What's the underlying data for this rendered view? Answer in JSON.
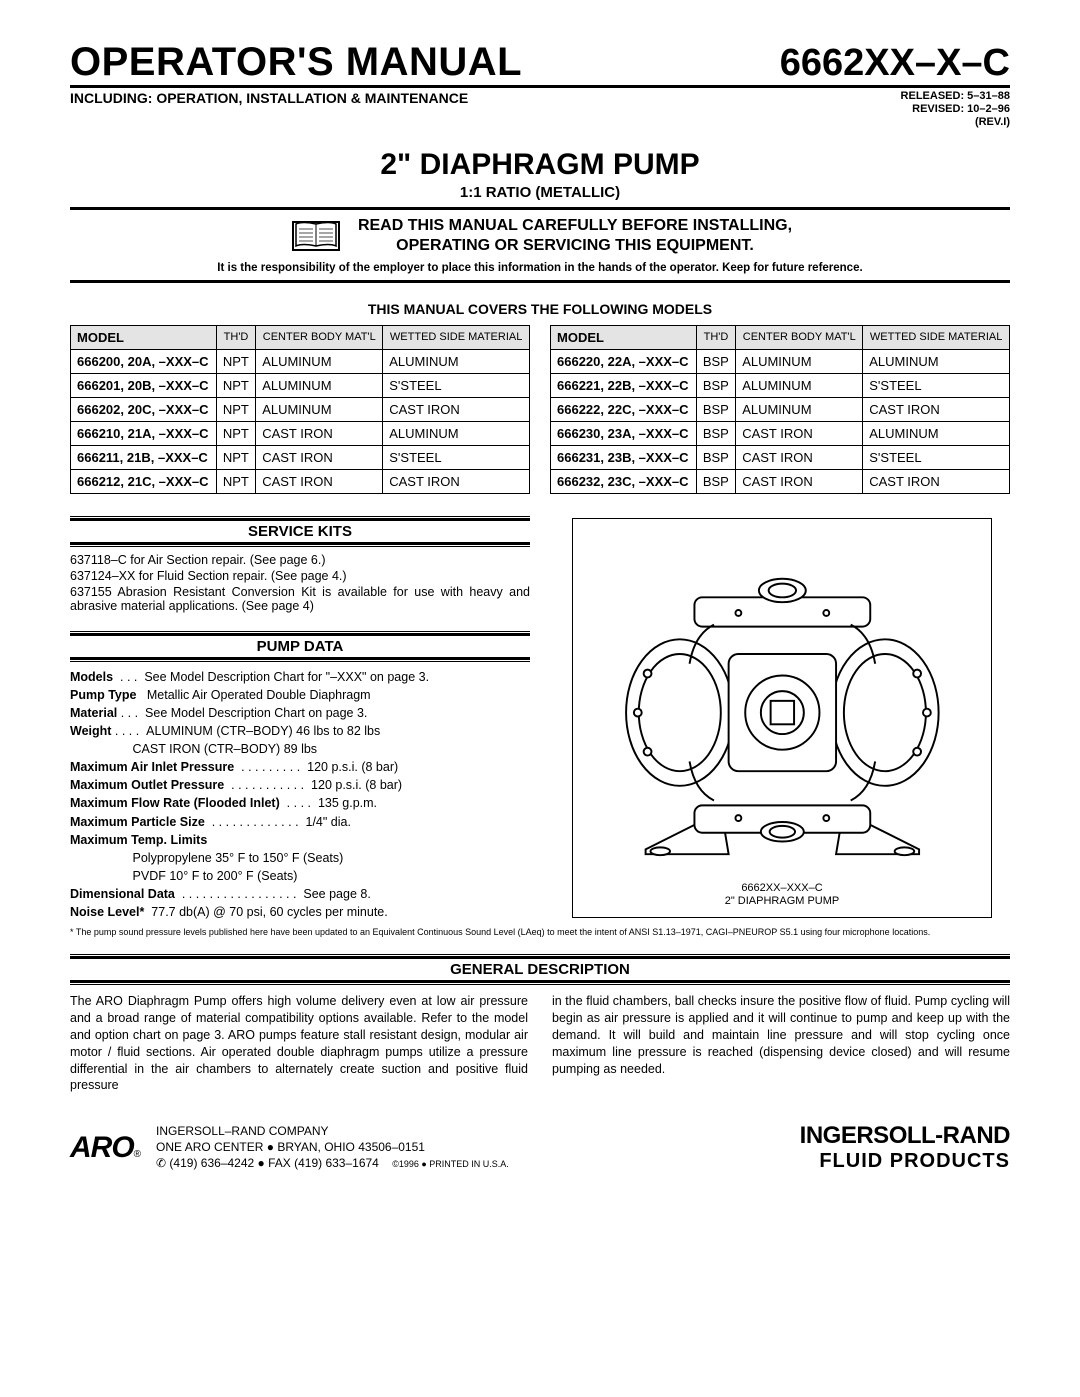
{
  "header": {
    "title_left": "OPERATOR'S MANUAL",
    "title_right": "6662XX–X–C",
    "sub_left": "INCLUDING: OPERATION, INSTALLATION & MAINTENANCE",
    "released": "RELEASED: 5–31–88",
    "revised": "REVISED: 10–2–96",
    "rev": "(REV.I)",
    "center1": "2\" DIAPHRAGM PUMP",
    "center2": "1:1 RATIO (METALLIC)",
    "warn1": "READ THIS MANUAL CAREFULLY BEFORE INSTALLING,",
    "warn2": "OPERATING OR SERVICING THIS EQUIPMENT.",
    "resp": "It is the responsibility of the employer to place this information in the hands of the operator. Keep for future reference.",
    "covers": "THIS MANUAL COVERS THE FOLLOWING MODELS"
  },
  "table_headers": {
    "model": "MODEL",
    "thd": "TH'D",
    "body": "CENTER BODY MAT'L",
    "wetted": "WETTED SIDE MATERIAL"
  },
  "table_left": [
    {
      "m": "666200, 20A, –XXX–C",
      "t": "NPT",
      "b": "ALUMINUM",
      "w": "ALUMINUM"
    },
    {
      "m": "666201, 20B, –XXX–C",
      "t": "NPT",
      "b": "ALUMINUM",
      "w": "S'STEEL"
    },
    {
      "m": "666202, 20C, –XXX–C",
      "t": "NPT",
      "b": "ALUMINUM",
      "w": "CAST IRON"
    },
    {
      "m": "666210, 21A, –XXX–C",
      "t": "NPT",
      "b": "CAST IRON",
      "w": "ALUMINUM"
    },
    {
      "m": "666211, 21B, –XXX–C",
      "t": "NPT",
      "b": "CAST IRON",
      "w": "S'STEEL"
    },
    {
      "m": "666212, 21C, –XXX–C",
      "t": "NPT",
      "b": "CAST IRON",
      "w": "CAST IRON"
    }
  ],
  "table_right": [
    {
      "m": "666220, 22A, –XXX–C",
      "t": "BSP",
      "b": "ALUMINUM",
      "w": "ALUMINUM"
    },
    {
      "m": "666221, 22B, –XXX–C",
      "t": "BSP",
      "b": "ALUMINUM",
      "w": "S'STEEL"
    },
    {
      "m": "666222, 22C, –XXX–C",
      "t": "BSP",
      "b": "ALUMINUM",
      "w": "CAST IRON"
    },
    {
      "m": "666230, 23A, –XXX–C",
      "t": "BSP",
      "b": "CAST IRON",
      "w": "ALUMINUM"
    },
    {
      "m": "666231, 23B, –XXX–C",
      "t": "BSP",
      "b": "CAST IRON",
      "w": "S'STEEL"
    },
    {
      "m": "666232, 23C, –XXX–C",
      "t": "BSP",
      "b": "CAST IRON",
      "w": "CAST IRON"
    }
  ],
  "service_kits": {
    "heading": "SERVICE KITS",
    "l1": "637118–C for Air Section repair. (See page 6.)",
    "l2": "637124–XX for Fluid Section repair. (See page 4.)",
    "l3": "637155 Abrasion Resistant Conversion Kit is available for use with heavy and abrasive material applications. (See page 4)"
  },
  "pump_data": {
    "heading": "PUMP DATA",
    "rows": [
      {
        "lab": "Models",
        "dots": "  . . .  ",
        "val": "See Model Description Chart for \"–XXX\" on page 3."
      },
      {
        "lab": "Pump Type",
        "dots": "   ",
        "val": "Metallic Air Operated Double Diaphragm"
      },
      {
        "lab": "Material",
        "dots": " . . .  ",
        "val": "See Model Description Chart on page 3."
      },
      {
        "lab": "Weight",
        "dots": " . . . .  ",
        "val": "ALUMINUM (CTR–BODY) 46 lbs to 82 lbs"
      },
      {
        "lab": "",
        "dots": "                  ",
        "val": "CAST IRON (CTR–BODY) 89 lbs"
      },
      {
        "lab": "Maximum Air Inlet Pressure",
        "dots": "  . . . . . . . . .  ",
        "val": "120 p.s.i. (8 bar)"
      },
      {
        "lab": "Maximum Outlet Pressure",
        "dots": "  . . . . . . . . . . .  ",
        "val": "120 p.s.i. (8 bar)"
      },
      {
        "lab": "Maximum Flow Rate (Flooded Inlet)",
        "dots": "  . . . .  ",
        "val": "135 g.p.m."
      },
      {
        "lab": "Maximum Particle Size",
        "dots": "  . . . . . . . . . . . . .  ",
        "val": "1/4\" dia."
      },
      {
        "lab": "Maximum Temp. Limits",
        "dots": "",
        "val": ""
      },
      {
        "lab": "",
        "dots": "                  ",
        "val": "Polypropylene 35° F to 150° F (Seats)"
      },
      {
        "lab": "",
        "dots": "                  ",
        "val": "PVDF 10° F to 200° F (Seats)"
      },
      {
        "lab": "Dimensional Data",
        "dots": "  . . . . . . . . . . . . . . . . .  ",
        "val": "See page 8."
      },
      {
        "lab": "Noise Level*",
        "dots": "  ",
        "val": "77.7 db(A) @ 70 psi, 60 cycles per minute."
      }
    ],
    "noise_note": "* The pump sound pressure levels published here have been updated to an Equivalent Continuous Sound Level (LAeq) to meet the intent of ANSI S1.13–1971, CAGI–PNEUROP S5.1 using four microphone locations."
  },
  "figure": {
    "cap1": "6662XX–XXX–C",
    "cap2": "2\" DIAPHRAGM PUMP"
  },
  "general": {
    "heading": "GENERAL DESCRIPTION",
    "left": "The ARO Diaphragm Pump offers high volume delivery even at low air pressure and a broad range of material compatibility options available. Refer to the model and option chart on page 3. ARO pumps feature stall resistant design, modular air motor / fluid sections.\nAir operated double diaphragm pumps utilize a pressure differential in the air chambers to alternately create suction and positive fluid pressure",
    "right": "in the fluid chambers, ball checks insure the positive flow of fluid. Pump cycling will begin as air pressure is applied and it will continue to pump and keep up with the demand. It will build and maintain line pressure and will stop cycling once maximum line pressure is reached (dispensing device closed) and will resume pumping as needed."
  },
  "footer": {
    "aro": "ARO",
    "comp1": "INGERSOLL–RAND COMPANY",
    "comp2": "ONE ARO CENTER ● BRYAN, OHIO  43506–0151",
    "comp3": "✆ (419) 636–4242 ● FAX (419) 633–1674",
    "print": "©1996 ● PRINTED IN U.S.A.",
    "ir": "INGERSOLL-RAND",
    "fp": "FLUID PRODUCTS"
  }
}
